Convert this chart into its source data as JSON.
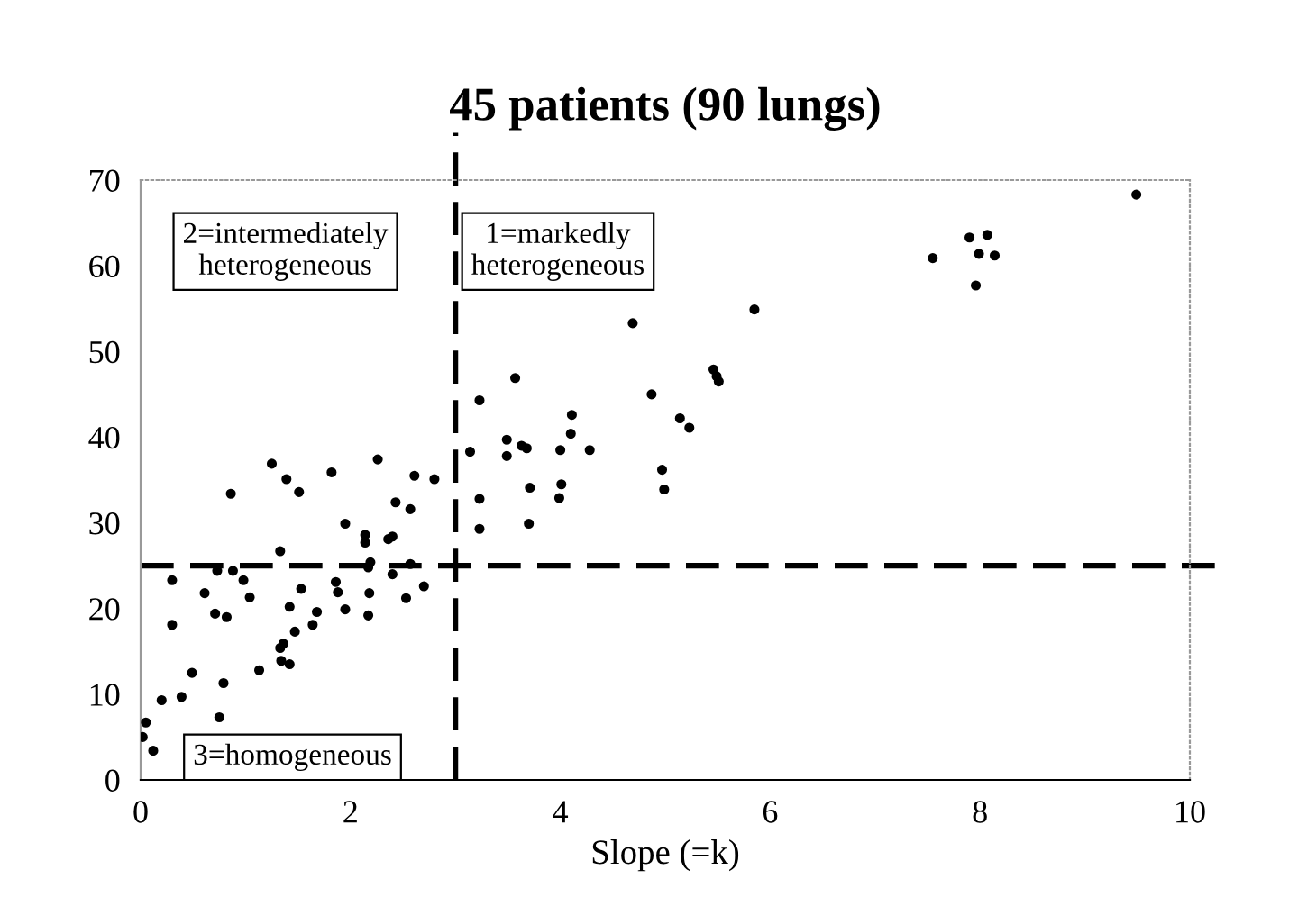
{
  "chart_data": {
    "type": "scatter",
    "title": "45 patients (90 lungs)",
    "xlabel": "Slope (=k)",
    "xlim": [
      0,
      10
    ],
    "xticks": [
      0,
      2,
      4,
      6,
      8,
      10
    ],
    "ylim": [
      0,
      70
    ],
    "yticks": [
      0,
      10,
      20,
      30,
      40,
      50,
      60,
      70
    ],
    "grid": false,
    "marker": "circle",
    "series": [
      {
        "color": "#000000",
        "x": [
          1.25,
          1.39,
          1.51,
          0.86,
          1.82,
          2.26,
          2.61,
          2.8,
          2.43,
          2.57,
          1.95,
          2.14,
          2.14,
          2.36,
          2.4,
          1.33,
          0.73,
          0.88,
          2.19,
          2.17,
          2.57,
          2.4,
          0.3,
          0.98,
          1.86,
          0.61,
          1.04,
          1.53,
          1.88,
          2.18,
          2.7,
          2.53,
          0.71,
          0.82,
          1.42,
          1.68,
          1.95,
          2.17,
          0.3,
          1.64,
          1.47,
          1.36,
          1.33,
          1.34,
          1.42,
          0.49,
          1.13,
          0.79,
          0.2,
          0.39,
          0.75,
          0.05,
          0.02,
          0.12,
          3.23,
          3.57,
          3.14,
          3.49,
          3.49,
          3.63,
          3.68,
          3.23,
          3.23,
          3.71,
          3.7,
          4.0,
          4.11,
          4.1,
          4.01,
          3.99,
          4.28,
          4.69,
          4.87,
          5.14,
          5.23,
          4.97,
          4.99,
          5.46,
          5.49,
          5.51,
          5.85,
          9.49,
          7.9,
          8.07,
          7.99,
          8.14,
          7.55,
          7.96
        ],
        "values": [
          36.9,
          35.1,
          33.6,
          33.4,
          35.9,
          37.4,
          35.5,
          35.1,
          32.4,
          31.6,
          29.9,
          28.6,
          27.7,
          28.1,
          28.4,
          26.7,
          24.4,
          24.4,
          25.4,
          24.8,
          25.2,
          24.0,
          23.3,
          23.3,
          23.1,
          21.8,
          21.3,
          22.3,
          21.9,
          21.8,
          22.6,
          21.2,
          19.4,
          19.0,
          20.2,
          19.6,
          19.9,
          19.2,
          18.1,
          18.1,
          17.3,
          15.9,
          15.4,
          13.9,
          13.5,
          12.5,
          12.8,
          11.3,
          9.3,
          9.7,
          7.3,
          6.7,
          5.0,
          3.4,
          44.3,
          46.9,
          38.3,
          39.7,
          37.8,
          39.0,
          38.7,
          32.8,
          29.3,
          34.1,
          29.9,
          38.5,
          42.6,
          40.4,
          34.5,
          32.9,
          38.5,
          53.3,
          45.0,
          42.2,
          41.1,
          36.2,
          33.9,
          47.9,
          47.1,
          46.5,
          54.9,
          68.3,
          63.3,
          63.6,
          61.4,
          61.2,
          60.9,
          57.7
        ]
      }
    ],
    "ref_lines": [
      {
        "axis": "x",
        "value": 3,
        "color": "#000000",
        "line_style": "dashed"
      },
      {
        "axis": "y",
        "value": 25,
        "color": "#000000",
        "line_style": "dashed"
      }
    ],
    "annotations": [
      "2=intermediately\nheterogeneous",
      "1=markedly\nheterogeneous",
      "3=homogeneous"
    ]
  }
}
